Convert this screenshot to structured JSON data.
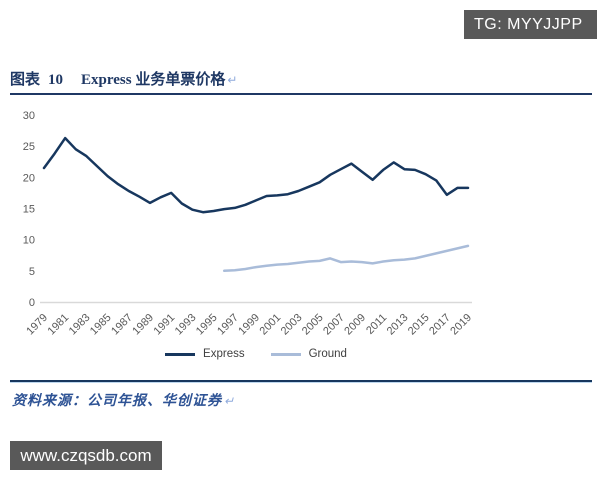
{
  "badges": {
    "tg": "TG: MYYJJPP",
    "watermark": "www.czqsdb.com"
  },
  "figure": {
    "label": "图表",
    "number": "10",
    "title": "Express 业务单票价格",
    "paragraph_mark": "↵"
  },
  "source_note": {
    "text": "资料来源：公司年报、华创证券",
    "paragraph_mark": "↵"
  },
  "colors": {
    "navy": "#1F3864",
    "express_line": "#17375E",
    "ground_line": "#A9BCD9",
    "axis_text": "#595959",
    "axis_line": "#D9D9D9",
    "badge_bg": "#595959",
    "source_text": "#2E5395"
  },
  "chart_data": {
    "type": "line",
    "title": "Express 业务单票价格",
    "xlabel": "",
    "ylabel": "",
    "xlim": [
      1979,
      2019
    ],
    "ylim": [
      0,
      30
    ],
    "grid": false,
    "legend_position": "bottom",
    "y_ticks": [
      0,
      5,
      10,
      15,
      20,
      25,
      30
    ],
    "x_tick_labels": [
      "1979",
      "1981",
      "1983",
      "1985",
      "1987",
      "1989",
      "1991",
      "1993",
      "1995",
      "1997",
      "1999",
      "2001",
      "2003",
      "2005",
      "2007",
      "2009",
      "2011",
      "2013",
      "2015",
      "2017",
      "2019"
    ],
    "series": [
      {
        "name": "Express",
        "color": "#17375E",
        "start_year": 1979,
        "values": [
          21.5,
          23.8,
          26.3,
          24.5,
          23.4,
          21.8,
          20.2,
          18.9,
          17.8,
          16.9,
          15.9,
          16.8,
          17.5,
          15.8,
          14.8,
          14.4,
          14.6,
          14.9,
          15.1,
          15.6,
          16.3,
          17.0,
          17.1,
          17.3,
          17.8,
          18.5,
          19.2,
          20.4,
          21.3,
          22.2,
          20.9,
          19.6,
          21.2,
          22.4,
          21.3,
          21.2,
          20.5,
          19.5,
          17.2,
          18.3,
          18.3
        ]
      },
      {
        "name": "Ground",
        "color": "#A9BCD9",
        "start_year": 1996,
        "values": [
          5.0,
          5.1,
          5.3,
          5.6,
          5.8,
          6.0,
          6.1,
          6.3,
          6.5,
          6.6,
          7.0,
          6.4,
          6.5,
          6.4,
          6.2,
          6.5,
          6.7,
          6.8,
          7.0,
          7.4,
          7.8,
          8.2,
          8.6,
          9.0
        ]
      }
    ]
  }
}
